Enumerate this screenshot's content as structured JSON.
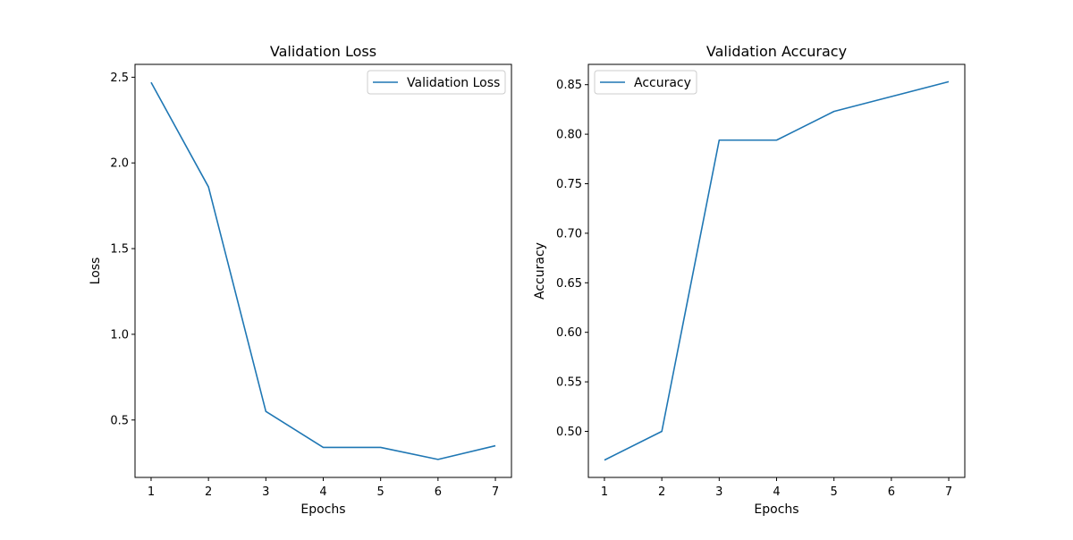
{
  "chart_data": [
    {
      "type": "line",
      "title": "Validation Loss",
      "xlabel": "Epochs",
      "ylabel": "Loss",
      "x": [
        1,
        2,
        3,
        4,
        5,
        6,
        7
      ],
      "series": [
        {
          "name": "Validation Loss",
          "color": "#1f77b4",
          "values": [
            2.47,
            1.86,
            0.55,
            0.34,
            0.34,
            0.27,
            0.35
          ]
        }
      ],
      "xlim": [
        0.72,
        7.28
      ],
      "ylim": [
        0.165,
        2.575
      ],
      "xticks": [
        1,
        2,
        3,
        4,
        5,
        6,
        7
      ],
      "yticks": [
        0.5,
        1.0,
        1.5,
        2.0,
        2.5
      ],
      "ytick_labels": [
        "0.5",
        "1.0",
        "1.5",
        "2.0",
        "2.5"
      ],
      "grid": false,
      "legend_position": "top-right"
    },
    {
      "type": "line",
      "title": "Validation Accuracy",
      "xlabel": "Epochs",
      "ylabel": "Accuracy",
      "x": [
        1,
        2,
        3,
        4,
        5,
        6,
        7
      ],
      "series": [
        {
          "name": "Accuracy",
          "color": "#1f77b4",
          "values": [
            0.471,
            0.5,
            0.794,
            0.794,
            0.823,
            0.838,
            0.853
          ]
        }
      ],
      "xlim": [
        0.72,
        7.28
      ],
      "ylim": [
        0.4535,
        0.8705
      ],
      "xticks": [
        1,
        2,
        3,
        4,
        5,
        6,
        7
      ],
      "yticks": [
        0.5,
        0.55,
        0.6,
        0.65,
        0.7,
        0.75,
        0.8,
        0.85
      ],
      "ytick_labels": [
        "0.50",
        "0.55",
        "0.60",
        "0.65",
        "0.70",
        "0.75",
        "0.80",
        "0.85"
      ],
      "grid": false,
      "legend_position": "top-left"
    }
  ]
}
